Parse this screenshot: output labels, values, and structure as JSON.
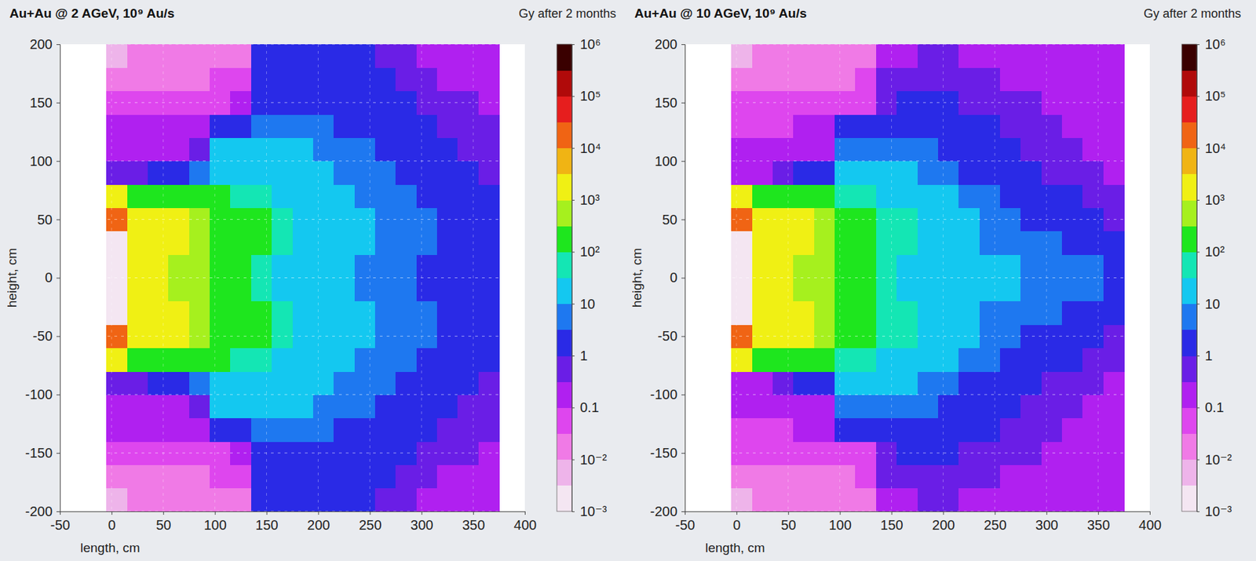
{
  "chart_data": [
    {
      "type": "heatmap",
      "title": "Au+Au @ 2 AGeV, 10⁹ Au/s",
      "x_label": "length, cm",
      "y_label": "height, cm",
      "xlim": [
        -50,
        400
      ],
      "xticks": [
        -50,
        0,
        50,
        100,
        150,
        200,
        250,
        300,
        350,
        400
      ],
      "ylim": [
        -200,
        200
      ],
      "yticks": [
        -200,
        -150,
        -100,
        -50,
        0,
        50,
        100,
        150,
        200
      ],
      "grid": true,
      "x_edges": [
        -5,
        15,
        35,
        55,
        75,
        95,
        115,
        135,
        155,
        175,
        195,
        215,
        235,
        255,
        275,
        295,
        315,
        335,
        355,
        375
      ],
      "y_edges": [
        -200,
        -180,
        -160,
        -140,
        -120,
        -100,
        -80,
        -60,
        -40,
        -20,
        0,
        20,
        40,
        60,
        80,
        100,
        120,
        140,
        160,
        180,
        200
      ],
      "cells": [
        [
          0.005,
          0.01,
          0.01,
          0.01,
          0.01,
          0.01,
          0.02,
          1,
          1,
          1.5,
          1.5,
          1,
          1,
          0.7,
          0.5,
          0.3,
          0.3,
          0.2,
          0.2
        ],
        [
          0.03,
          0.03,
          0.03,
          0.03,
          0.03,
          0.04,
          0.05,
          1.5,
          2,
          2,
          2,
          1.5,
          1.5,
          1,
          0.7,
          0.5,
          0.3,
          0.3,
          0.2
        ],
        [
          0.05,
          0.05,
          0.05,
          0.06,
          0.06,
          0.08,
          0.1,
          2,
          3,
          3,
          3,
          2,
          2,
          1.5,
          1,
          0.7,
          0.5,
          0.4,
          0.3
        ],
        [
          0.1,
          0.1,
          0.1,
          0.15,
          0.2,
          3,
          3,
          5,
          5,
          5,
          5,
          3,
          3,
          2,
          1.5,
          1,
          0.7,
          0.5,
          0.4
        ],
        [
          0.2,
          0.2,
          0.2,
          0.3,
          0.5,
          10,
          10,
          10,
          10,
          10,
          7,
          5,
          4,
          3,
          2,
          1.5,
          1,
          0.7,
          0.5
        ],
        [
          0.5,
          0.5,
          1,
          2,
          5,
          30,
          30,
          20,
          20,
          15,
          10,
          7,
          5,
          4,
          3,
          2,
          1.5,
          1,
          0.7
        ],
        [
          3000,
          300,
          200,
          150,
          100,
          100,
          70,
          50,
          30,
          20,
          15,
          10,
          7,
          5,
          4,
          3,
          2,
          1.5,
          1
        ],
        [
          20000,
          3000,
          2000,
          1000,
          500,
          300,
          200,
          100,
          50,
          30,
          20,
          15,
          10,
          7,
          5,
          4,
          3,
          2,
          1.5
        ],
        [
          0.001,
          3000,
          2000,
          1000,
          500,
          300,
          200,
          100,
          50,
          30,
          20,
          15,
          10,
          7,
          5,
          4,
          3,
          2,
          1.5
        ],
        [
          0.001,
          2000,
          1000,
          700,
          500,
          300,
          100,
          50,
          30,
          20,
          15,
          10,
          7,
          5,
          4,
          3,
          2,
          1.5,
          1
        ],
        [
          0.001,
          2000,
          1000,
          700,
          500,
          300,
          100,
          50,
          30,
          20,
          15,
          10,
          7,
          5,
          4,
          3,
          2,
          1.5,
          1
        ],
        [
          0.001,
          3000,
          2000,
          1000,
          500,
          300,
          200,
          100,
          50,
          30,
          20,
          15,
          10,
          7,
          5,
          4,
          3,
          2,
          1.5
        ],
        [
          20000,
          3000,
          2000,
          1000,
          500,
          300,
          200,
          100,
          50,
          30,
          20,
          15,
          10,
          7,
          5,
          4,
          3,
          2,
          1.5
        ],
        [
          3000,
          300,
          200,
          150,
          100,
          100,
          70,
          50,
          30,
          20,
          15,
          10,
          7,
          5,
          4,
          3,
          2,
          1.5,
          1
        ],
        [
          0.5,
          0.5,
          1,
          2,
          5,
          30,
          30,
          20,
          20,
          15,
          10,
          7,
          5,
          4,
          3,
          2,
          1.5,
          1,
          0.7
        ],
        [
          0.2,
          0.2,
          0.2,
          0.3,
          0.5,
          10,
          10,
          10,
          10,
          10,
          7,
          5,
          4,
          3,
          2,
          1.5,
          1,
          0.7,
          0.5
        ],
        [
          0.1,
          0.1,
          0.1,
          0.15,
          0.2,
          3,
          3,
          5,
          5,
          5,
          5,
          3,
          3,
          2,
          1.5,
          1,
          0.7,
          0.5,
          0.4
        ],
        [
          0.05,
          0.05,
          0.05,
          0.06,
          0.06,
          0.08,
          0.1,
          2,
          3,
          3,
          3,
          2,
          2,
          1.5,
          1,
          0.7,
          0.5,
          0.4,
          0.3
        ],
        [
          0.03,
          0.03,
          0.03,
          0.03,
          0.03,
          0.04,
          0.05,
          1.5,
          2,
          2,
          2,
          1.5,
          1.5,
          1,
          0.7,
          0.5,
          0.3,
          0.3,
          0.2
        ],
        [
          0.005,
          0.01,
          0.01,
          0.01,
          0.01,
          0.01,
          0.02,
          1,
          1,
          1.5,
          1.5,
          1,
          1,
          0.7,
          0.5,
          0.3,
          0.3,
          0.2,
          0.2
        ]
      ],
      "colorbar": {
        "title": "Gy after 2 months",
        "range": [
          0.001,
          1000000
        ],
        "ticks": [
          {
            "value": 1000000,
            "label": "10⁶"
          },
          {
            "value": 100000,
            "label": "10⁵"
          },
          {
            "value": 10000,
            "label": "10⁴"
          },
          {
            "value": 1000,
            "label": "10³"
          },
          {
            "value": 100,
            "label": "10²"
          },
          10,
          1,
          0.1,
          {
            "value": 0.01,
            "label": "10⁻²"
          },
          {
            "value": 0.001,
            "label": "10⁻³"
          }
        ]
      }
    },
    {
      "type": "heatmap",
      "title": "Au+Au @ 10 AGeV, 10⁹ Au/s",
      "x_label": "length, cm",
      "y_label": "height, cm",
      "xlim": [
        -50,
        400
      ],
      "xticks": [
        -50,
        0,
        50,
        100,
        150,
        200,
        250,
        300,
        350,
        400
      ],
      "ylim": [
        -200,
        200
      ],
      "yticks": [
        -200,
        -150,
        -100,
        -50,
        0,
        50,
        100,
        150,
        200
      ],
      "grid": true,
      "x_edges": [
        -5,
        15,
        35,
        55,
        75,
        95,
        115,
        135,
        155,
        175,
        195,
        215,
        235,
        255,
        275,
        295,
        315,
        335,
        355,
        375
      ],
      "y_edges": [
        -200,
        -180,
        -160,
        -140,
        -120,
        -100,
        -80,
        -60,
        -40,
        -20,
        0,
        20,
        40,
        60,
        80,
        100,
        120,
        140,
        160,
        180,
        200
      ],
      "cells": [
        [
          0.005,
          0.01,
          0.01,
          0.01,
          0.01,
          0.01,
          0.02,
          0.3,
          0.3,
          0.5,
          0.5,
          0.3,
          0.3,
          0.2,
          0.2,
          0.1,
          0.1,
          0.1,
          0.1
        ],
        [
          0.02,
          0.02,
          0.02,
          0.02,
          0.02,
          0.03,
          0.04,
          0.5,
          0.7,
          0.7,
          0.7,
          0.5,
          0.5,
          0.3,
          0.3,
          0.2,
          0.1,
          0.1,
          0.1
        ],
        [
          0.04,
          0.04,
          0.04,
          0.05,
          0.05,
          0.06,
          0.08,
          0.7,
          1,
          1,
          1,
          0.7,
          0.7,
          0.5,
          0.4,
          0.3,
          0.2,
          0.2,
          0.1
        ],
        [
          0.07,
          0.07,
          0.07,
          0.1,
          0.15,
          2,
          2,
          2,
          2,
          2,
          2,
          1.5,
          1,
          0.7,
          0.5,
          0.4,
          0.3,
          0.2,
          0.2
        ],
        [
          0.15,
          0.15,
          0.15,
          0.2,
          0.3,
          7,
          7,
          5,
          5,
          5,
          3,
          2,
          1.5,
          1,
          0.7,
          0.5,
          0.4,
          0.3,
          0.2
        ],
        [
          0.3,
          0.3,
          0.7,
          1.5,
          3,
          20,
          20,
          15,
          10,
          7,
          5,
          3,
          2,
          1.5,
          1,
          0.7,
          0.5,
          0.4,
          0.3
        ],
        [
          3000,
          300,
          200,
          150,
          100,
          70,
          50,
          30,
          20,
          15,
          10,
          7,
          5,
          3,
          2,
          1.5,
          1,
          0.7,
          0.5
        ],
        [
          30000,
          3000,
          2000,
          1000,
          500,
          200,
          150,
          70,
          40,
          20,
          15,
          10,
          7,
          5,
          3,
          2,
          1.5,
          1,
          0.7
        ],
        [
          0.001,
          3000,
          2000,
          1000,
          500,
          300,
          150,
          70,
          40,
          20,
          15,
          10,
          7,
          7,
          5,
          4,
          3,
          2,
          2
        ],
        [
          0.001,
          2000,
          1000,
          700,
          500,
          300,
          100,
          50,
          30,
          20,
          20,
          15,
          10,
          10,
          7,
          5,
          5,
          4,
          3
        ],
        [
          0.001,
          2000,
          1000,
          700,
          500,
          300,
          100,
          50,
          30,
          20,
          20,
          15,
          10,
          10,
          7,
          5,
          5,
          4,
          3
        ],
        [
          0.001,
          3000,
          2000,
          1000,
          500,
          300,
          150,
          70,
          40,
          20,
          15,
          10,
          7,
          7,
          5,
          4,
          3,
          2,
          2
        ],
        [
          30000,
          3000,
          2000,
          1000,
          500,
          200,
          150,
          70,
          40,
          20,
          15,
          10,
          7,
          5,
          3,
          2,
          1.5,
          1,
          0.7
        ],
        [
          3000,
          300,
          200,
          150,
          100,
          70,
          50,
          30,
          20,
          15,
          10,
          7,
          5,
          3,
          2,
          1.5,
          1,
          0.7,
          0.5
        ],
        [
          0.3,
          0.3,
          0.7,
          1.5,
          3,
          20,
          20,
          15,
          10,
          7,
          5,
          3,
          2,
          1.5,
          1,
          0.7,
          0.5,
          0.4,
          0.3
        ],
        [
          0.15,
          0.15,
          0.15,
          0.2,
          0.3,
          7,
          7,
          5,
          5,
          5,
          3,
          2,
          1.5,
          1,
          0.7,
          0.5,
          0.4,
          0.3,
          0.2
        ],
        [
          0.07,
          0.07,
          0.07,
          0.1,
          0.15,
          2,
          2,
          2,
          2,
          2,
          2,
          1.5,
          1,
          0.7,
          0.5,
          0.4,
          0.3,
          0.2,
          0.2
        ],
        [
          0.04,
          0.04,
          0.04,
          0.05,
          0.05,
          0.06,
          0.08,
          0.7,
          1,
          1,
          1,
          0.7,
          0.7,
          0.5,
          0.4,
          0.3,
          0.2,
          0.2,
          0.1
        ],
        [
          0.02,
          0.02,
          0.02,
          0.02,
          0.02,
          0.03,
          0.04,
          0.5,
          0.7,
          0.7,
          0.7,
          0.5,
          0.5,
          0.3,
          0.3,
          0.2,
          0.1,
          0.1,
          0.1
        ],
        [
          0.005,
          0.01,
          0.01,
          0.01,
          0.01,
          0.01,
          0.02,
          0.3,
          0.3,
          0.5,
          0.5,
          0.3,
          0.3,
          0.2,
          0.2,
          0.1,
          0.1,
          0.1,
          0.1
        ]
      ],
      "colorbar": {
        "title": "Gy after 2 months",
        "range": [
          0.001,
          1000000
        ],
        "ticks": [
          {
            "value": 1000000,
            "label": "10⁶"
          },
          {
            "value": 100000,
            "label": "10⁵"
          },
          {
            "value": 10000,
            "label": "10⁴"
          },
          {
            "value": 1000,
            "label": "10³"
          },
          {
            "value": 100,
            "label": "10²"
          },
          10,
          1,
          0.1,
          {
            "value": 0.01,
            "label": "10⁻²"
          },
          {
            "value": 0.001,
            "label": "10⁻³"
          }
        ]
      }
    }
  ]
}
